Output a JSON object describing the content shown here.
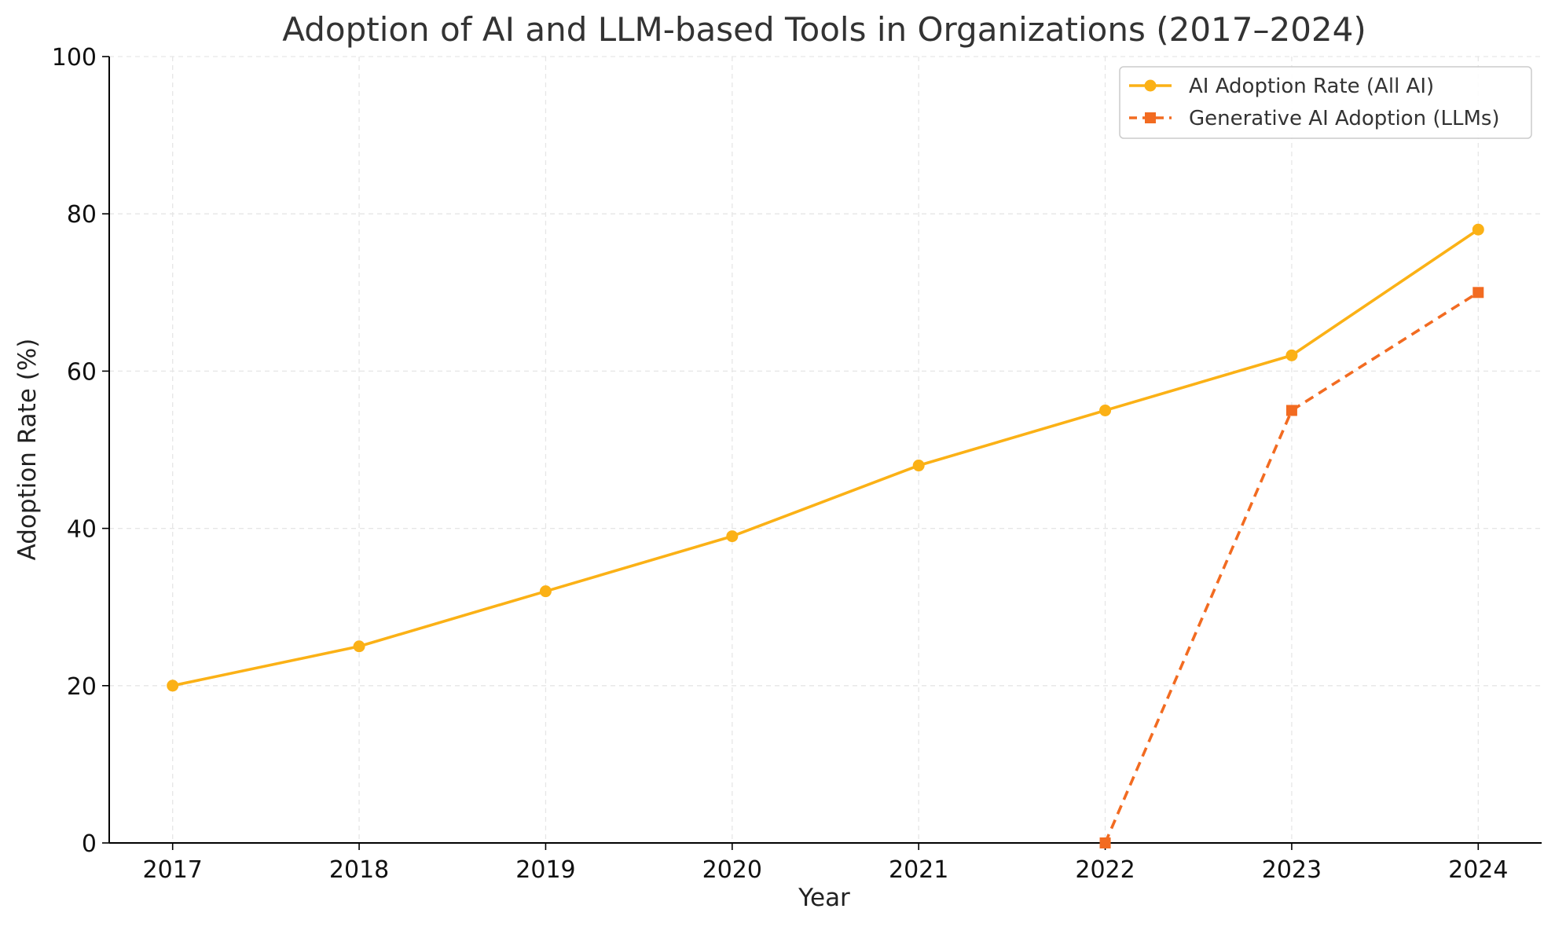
{
  "chart_data": {
    "type": "line",
    "title": "Adoption of AI and LLM-based Tools in Organizations (2017–2024)",
    "xlabel": "Year",
    "ylabel": "Adoption Rate (%)",
    "x": [
      2017,
      2018,
      2019,
      2020,
      2021,
      2022,
      2023,
      2024
    ],
    "x_tick_labels": [
      "2017",
      "2018",
      "2019",
      "2020",
      "2021",
      "2022",
      "2023",
      "2024"
    ],
    "ylim": [
      0,
      100
    ],
    "y_ticks": [
      0,
      20,
      40,
      60,
      80,
      100
    ],
    "y_tick_labels": [
      "0",
      "20",
      "40",
      "60",
      "80",
      "100"
    ],
    "grid": true,
    "legend_position": "top-right",
    "series": [
      {
        "name": "AI Adoption Rate (All AI)",
        "x": [
          2017,
          2018,
          2019,
          2020,
          2021,
          2022,
          2023,
          2024
        ],
        "values": [
          20,
          25,
          32,
          39,
          48,
          55,
          62,
          78
        ],
        "color": "#FBB116",
        "line_style": "solid",
        "marker": "circle"
      },
      {
        "name": "Generative AI Adoption (LLMs)",
        "x": [
          2022,
          2023,
          2024
        ],
        "values": [
          0,
          55,
          70
        ],
        "color": "#F26B21",
        "line_style": "dashed",
        "marker": "square"
      }
    ]
  }
}
